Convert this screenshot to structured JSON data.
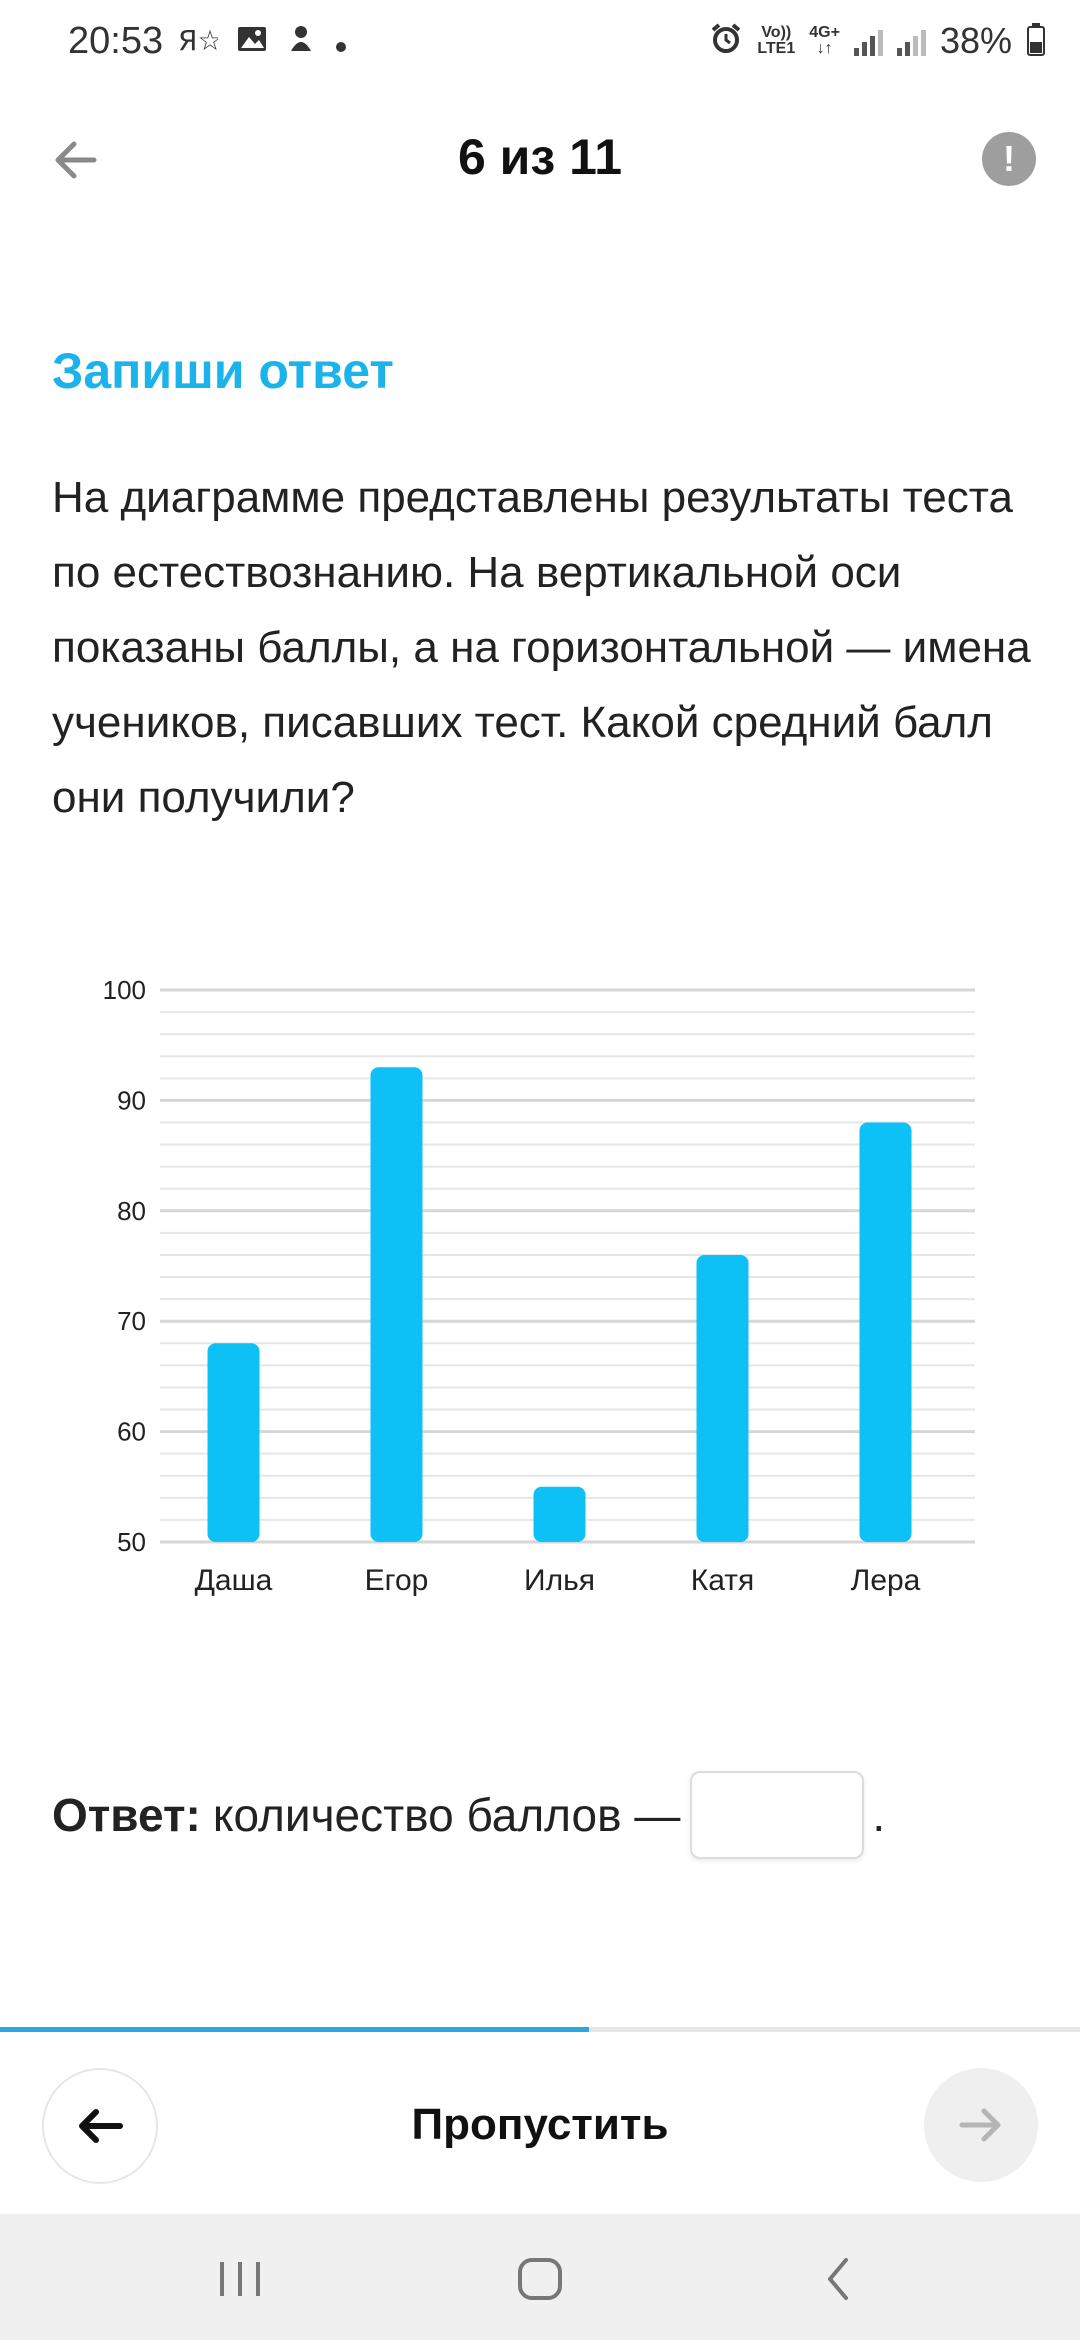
{
  "status": {
    "time": "20:53",
    "left_icons": [
      "yandex-icon",
      "image-icon",
      "alien-icon",
      "dot-icon"
    ],
    "volte": "Vo))\nLTE1",
    "network": "4G+",
    "battery": "38%"
  },
  "header": {
    "counter": "6 из 11",
    "alert_glyph": "!"
  },
  "task": {
    "title": "Запиши ответ",
    "question": "На диаграмме представлены результаты теста по естествознанию. На вертикальной оси показаны баллы, а на горизонтальной — имена учеников, писавших тест. Какой средний балл они получили?"
  },
  "chart_data": {
    "type": "bar",
    "categories": [
      "Даша",
      "Егор",
      "Илья",
      "Катя",
      "Лера"
    ],
    "values": [
      68,
      93,
      55,
      76,
      88
    ],
    "ylim": [
      50,
      100
    ],
    "yticks": [
      50,
      60,
      70,
      80,
      90,
      100
    ],
    "grid": true,
    "bar_color": "#0dc1f7"
  },
  "answer": {
    "label": "Ответ:",
    "text": "количество баллов —",
    "value": "",
    "suffix": "."
  },
  "progress": {
    "fraction": 0.545
  },
  "footer": {
    "skip_label": "Пропустить"
  },
  "colors": {
    "accent": "#1bb3ea",
    "progress": "#29a7e0"
  }
}
